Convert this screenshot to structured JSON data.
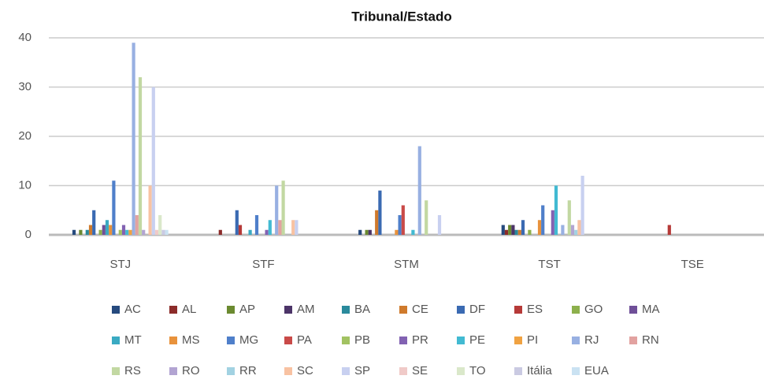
{
  "chart_data": {
    "type": "bar",
    "title": "Tribunal/Estado",
    "categories": [
      "STJ",
      "STF",
      "STM",
      "TST",
      "TSE"
    ],
    "ylim": [
      0,
      40
    ],
    "yticks": [
      0,
      10,
      20,
      30,
      40
    ],
    "grid": true,
    "legend": "bottom",
    "series": [
      {
        "name": "AC",
        "color": "#264a7e",
        "values": [
          1,
          0,
          1,
          2,
          0
        ]
      },
      {
        "name": "AL",
        "color": "#8c2c2a",
        "values": [
          0,
          1,
          0,
          1,
          0
        ]
      },
      {
        "name": "AP",
        "color": "#6b8a30",
        "values": [
          1,
          0,
          1,
          2,
          0
        ]
      },
      {
        "name": "AM",
        "color": "#4c3468",
        "values": [
          0,
          0,
          1,
          2,
          0
        ]
      },
      {
        "name": "BA",
        "color": "#2a8a9c",
        "values": [
          1,
          0,
          0,
          1,
          0
        ]
      },
      {
        "name": "CE",
        "color": "#cf7a2c",
        "values": [
          2,
          0,
          5,
          1,
          0
        ]
      },
      {
        "name": "DF",
        "color": "#3a6ab2",
        "values": [
          5,
          5,
          9,
          3,
          0
        ]
      },
      {
        "name": "ES",
        "color": "#b63a38",
        "values": [
          0,
          2,
          0,
          0,
          2
        ]
      },
      {
        "name": "GO",
        "color": "#8db04c",
        "values": [
          1,
          0,
          0,
          1,
          0
        ]
      },
      {
        "name": "MA",
        "color": "#6f4f98",
        "values": [
          2,
          0,
          0,
          0,
          0
        ]
      },
      {
        "name": "MT",
        "color": "#3aaac2",
        "values": [
          3,
          1,
          0,
          0,
          0
        ]
      },
      {
        "name": "MS",
        "color": "#e8923c",
        "values": [
          2,
          0,
          1,
          3,
          0
        ]
      },
      {
        "name": "MG",
        "color": "#4f7fca",
        "values": [
          11,
          4,
          4,
          6,
          0
        ]
      },
      {
        "name": "PA",
        "color": "#c94a48",
        "values": [
          0,
          0,
          6,
          0,
          0
        ]
      },
      {
        "name": "PB",
        "color": "#a2c262",
        "values": [
          1,
          0,
          0,
          0,
          0
        ]
      },
      {
        "name": "PR",
        "color": "#8262b2",
        "values": [
          2,
          1,
          0,
          5,
          0
        ]
      },
      {
        "name": "PE",
        "color": "#42bad2",
        "values": [
          1,
          3,
          1,
          10,
          0
        ]
      },
      {
        "name": "PI",
        "color": "#f0a242",
        "values": [
          1,
          0,
          0,
          0,
          0
        ]
      },
      {
        "name": "RJ",
        "color": "#98b0e2",
        "values": [
          39,
          10,
          18,
          2,
          0
        ]
      },
      {
        "name": "RN",
        "color": "#e2a2a0",
        "values": [
          4,
          3,
          0,
          0,
          0
        ]
      },
      {
        "name": "RS",
        "color": "#c2d8a2",
        "values": [
          32,
          11,
          7,
          7,
          0
        ]
      },
      {
        "name": "RO",
        "color": "#b2a4d2",
        "values": [
          1,
          0,
          0,
          2,
          0
        ]
      },
      {
        "name": "RR",
        "color": "#a2d2e2",
        "values": [
          0,
          0,
          0,
          1,
          0
        ]
      },
      {
        "name": "SC",
        "color": "#f8c2a2",
        "values": [
          10,
          3,
          0,
          3,
          0
        ]
      },
      {
        "name": "SP",
        "color": "#c8d0f0",
        "values": [
          30,
          3,
          4,
          12,
          0
        ]
      },
      {
        "name": "SE",
        "color": "#f0cac8",
        "values": [
          1,
          0,
          0,
          0,
          0
        ]
      },
      {
        "name": "TO",
        "color": "#dae8ca",
        "values": [
          4,
          0,
          0,
          0,
          0
        ]
      },
      {
        "name": "Itália",
        "color": "#cacae2",
        "values": [
          1,
          0,
          0,
          0,
          0
        ]
      },
      {
        "name": "EUA",
        "color": "#cae2f2",
        "values": [
          1,
          0,
          0,
          0,
          0
        ]
      }
    ]
  }
}
